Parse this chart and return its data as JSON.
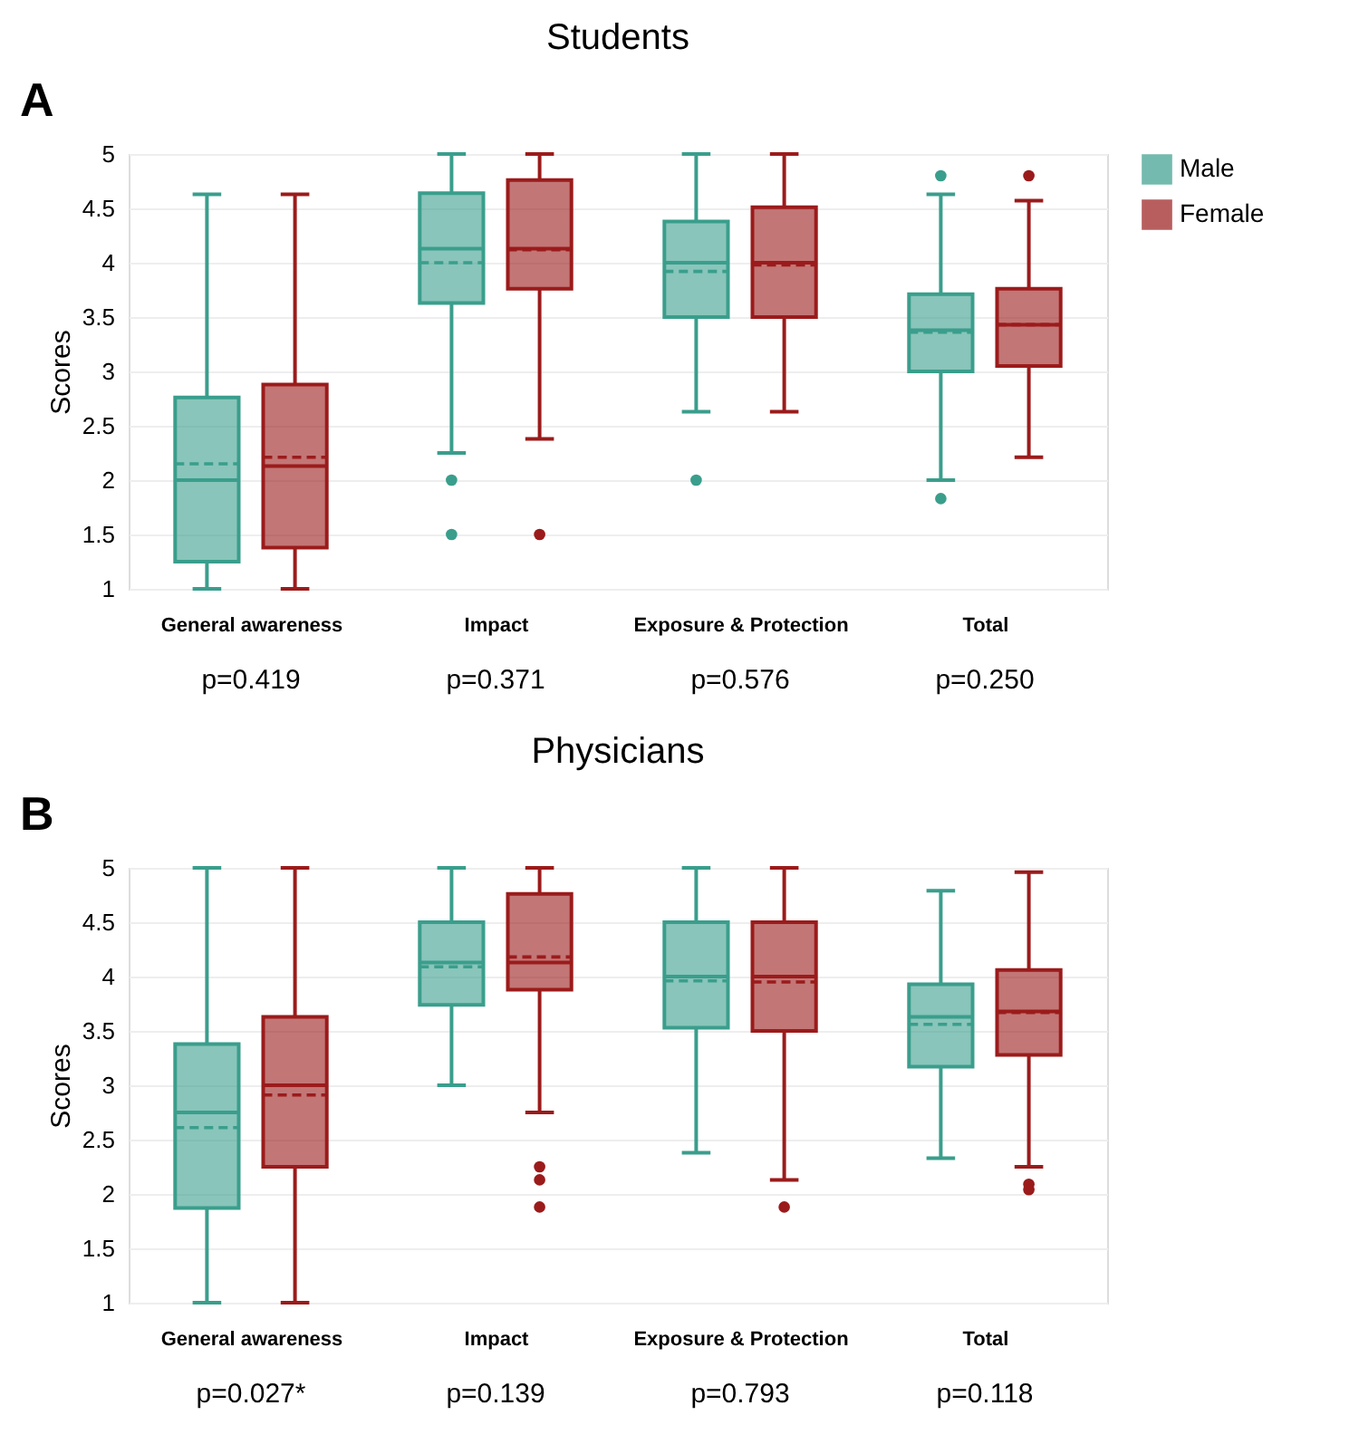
{
  "chart_data": [
    {
      "type": "box",
      "title": "Students",
      "ylabel": "Scores",
      "categories": [
        "General awareness",
        "Impact",
        "Exposure & Protection",
        "Total"
      ],
      "ylim": [
        1,
        5
      ],
      "yticks": [
        1,
        1.5,
        2,
        2.5,
        3,
        3.5,
        4,
        4.5,
        5
      ],
      "grid": "y",
      "legend": "top right",
      "annotations": [
        "A",
        "p=0.419",
        "p=0.371",
        "p=0.576",
        "p=0.250"
      ],
      "series": [
        {
          "name": "Male",
          "color": "#3a9e8c",
          "boxes": [
            {
              "low": 1,
              "q1": 1.25,
              "median": 2.0,
              "q3": 2.76,
              "high": 4.63,
              "mean": 2.15
            },
            {
              "low": 2.25,
              "q1": 3.63,
              "median": 4.13,
              "q3": 4.64,
              "high": 5,
              "mean": 4.0,
              "outliers": [
                2.0,
                1.5
              ]
            },
            {
              "low": 2.63,
              "q1": 3.5,
              "median": 4.0,
              "q3": 4.38,
              "high": 5,
              "mean": 3.92,
              "outliers": [
                2.0
              ]
            },
            {
              "low": 2.0,
              "q1": 3.0,
              "median": 3.38,
              "q3": 3.71,
              "high": 4.63,
              "mean": 3.36,
              "outliers": [
                4.8,
                1.83
              ]
            }
          ]
        },
        {
          "name": "Female",
          "color": "#9b1b1b",
          "boxes": [
            {
              "low": 1,
              "q1": 1.38,
              "median": 2.13,
              "q3": 2.88,
              "high": 4.63,
              "mean": 2.21
            },
            {
              "low": 2.38,
              "q1": 3.76,
              "median": 4.13,
              "q3": 4.76,
              "high": 5,
              "mean": 4.12,
              "outliers": [
                1.5
              ]
            },
            {
              "low": 2.63,
              "q1": 3.5,
              "median": 4.0,
              "q3": 4.51,
              "high": 5,
              "mean": 3.98
            },
            {
              "low": 2.21,
              "q1": 3.05,
              "median": 3.43,
              "q3": 3.76,
              "high": 4.57,
              "mean": 3.43,
              "outliers": [
                4.8
              ]
            }
          ]
        }
      ]
    },
    {
      "type": "box",
      "title": "Physicians",
      "ylabel": "Scores",
      "categories": [
        "General awareness",
        "Impact",
        "Exposure & Protection",
        "Total"
      ],
      "ylim": [
        1,
        5
      ],
      "yticks": [
        1,
        1.5,
        2,
        2.5,
        3,
        3.5,
        4,
        4.5,
        5
      ],
      "grid": "y",
      "legend": "top right",
      "annotations": [
        "B",
        "p=0.027*",
        "p=0.139",
        "p=0.793",
        "p=0.118"
      ],
      "series": [
        {
          "name": "Male",
          "color": "#3a9e8c",
          "boxes": [
            {
              "low": 1,
              "q1": 1.87,
              "median": 2.75,
              "q3": 3.38,
              "high": 5,
              "mean": 2.61
            },
            {
              "low": 3.0,
              "q1": 3.74,
              "median": 4.13,
              "q3": 4.5,
              "high": 5,
              "mean": 4.09
            },
            {
              "low": 2.38,
              "q1": 3.53,
              "median": 4.0,
              "q3": 4.5,
              "high": 5,
              "mean": 3.96
            },
            {
              "low": 2.33,
              "q1": 3.17,
              "median": 3.63,
              "q3": 3.93,
              "high": 4.79,
              "mean": 3.56
            }
          ]
        },
        {
          "name": "Female",
          "color": "#9b1b1b",
          "boxes": [
            {
              "low": 1,
              "q1": 2.25,
              "median": 3.0,
              "q3": 3.63,
              "high": 5,
              "mean": 2.91
            },
            {
              "low": 2.75,
              "q1": 3.88,
              "median": 4.13,
              "q3": 4.76,
              "high": 5,
              "mean": 4.18,
              "outliers": [
                2.25,
                2.13,
                1.88
              ]
            },
            {
              "low": 2.13,
              "q1": 3.5,
              "median": 4.0,
              "q3": 4.5,
              "high": 5,
              "mean": 3.95,
              "outliers": [
                1.88
              ]
            },
            {
              "low": 2.25,
              "q1": 3.28,
              "median": 3.68,
              "q3": 4.06,
              "high": 4.96,
              "mean": 3.67,
              "outliers": [
                2.09,
                2.04
              ]
            }
          ]
        }
      ]
    }
  ]
}
